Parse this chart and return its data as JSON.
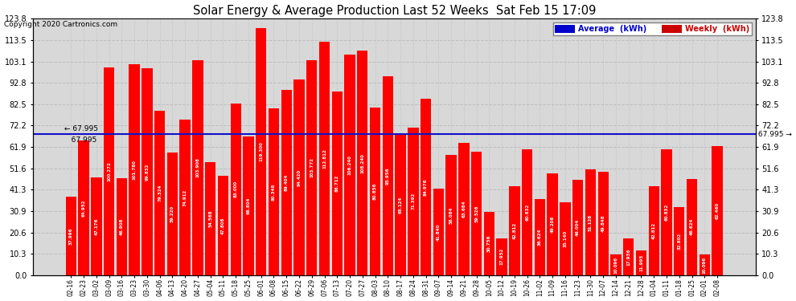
{
  "title": "Solar Energy & Average Production Last 52 Weeks  Sat Feb 15 17:09",
  "copyright": "Copyright 2020 Cartronics.com",
  "average_line": 67.995,
  "ylim_max": 123.8,
  "yticks": [
    0.0,
    10.3,
    20.6,
    30.9,
    41.3,
    51.6,
    61.9,
    72.2,
    82.5,
    92.8,
    103.1,
    113.5,
    123.8
  ],
  "bar_color": "#ff0000",
  "avg_line_color": "#1111cc",
  "bg_plot": "#d8d8d8",
  "bg_fig": "#ffffff",
  "grid_color": "#bbbbbb",
  "legend_avg_color": "#0000cc",
  "legend_weekly_color": "#cc0000",
  "categories": [
    "02-16",
    "02-23",
    "03-02",
    "03-09",
    "03-16",
    "03-23",
    "03-30",
    "04-06",
    "04-13",
    "04-20",
    "04-27",
    "05-04",
    "05-11",
    "05-18",
    "05-25",
    "06-01",
    "06-08",
    "06-15",
    "06-22",
    "06-29",
    "07-06",
    "07-13",
    "07-20",
    "07-27",
    "08-03",
    "08-10",
    "08-17",
    "08-24",
    "08-31",
    "09-07",
    "09-14",
    "09-21",
    "09-28",
    "10-05",
    "10-12",
    "10-19",
    "10-26",
    "11-02",
    "11-09",
    "11-16",
    "11-23",
    "11-30",
    "12-07",
    "12-14",
    "12-21",
    "12-28",
    "01-04",
    "01-11",
    "01-18",
    "01-25",
    "02-01",
    "02-08"
  ],
  "values": [
    37.996,
    64.952,
    47.176,
    100.272,
    46.908,
    101.78,
    99.832,
    79.324,
    59.22,
    74.912,
    103.908,
    54.568,
    47.808,
    83.0,
    66.804,
    119.3,
    80.348,
    89.404,
    94.42,
    103.772,
    112.812,
    88.712,
    106.24,
    108.24,
    80.856,
    95.956,
    68.124,
    71.392,
    84.976,
    41.84,
    58.084,
    63.684,
    59.526,
    30.756,
    17.952,
    42.812,
    60.832,
    36.624,
    49.208,
    35.14,
    46.004,
    51.128,
    49.848,
    10.096,
    17.936,
    11.995,
    42.812,
    60.832,
    32.802,
    46.624,
    10.096,
    62.46
  ]
}
